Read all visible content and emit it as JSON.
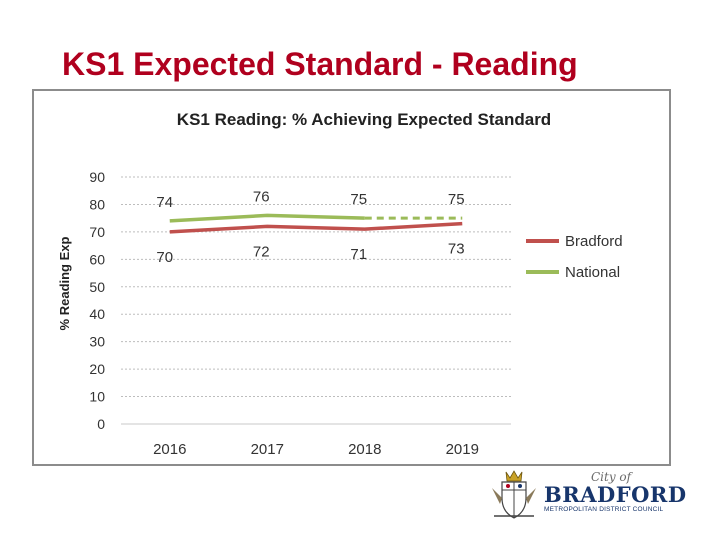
{
  "slide": {
    "title": "KS1 Expected Standard - Reading"
  },
  "chart_data": {
    "type": "line",
    "title": "KS1 Reading: % Achieving Expected Standard",
    "xlabel": "",
    "ylabel": "% Reading Exp",
    "categories": [
      "2016",
      "2017",
      "2018",
      "2019"
    ],
    "ylim": [
      0,
      90
    ],
    "yticks": [
      0,
      10,
      20,
      30,
      40,
      50,
      60,
      70,
      80,
      90
    ],
    "grid": true,
    "legend_position": "right",
    "series": [
      {
        "name": "Bradford",
        "values": [
          70,
          72,
          71,
          73
        ],
        "color": "#c0504d",
        "labels": [
          "70",
          "72",
          "71",
          "73"
        ]
      },
      {
        "name": "National",
        "values": [
          74,
          76,
          75,
          75
        ],
        "color": "#9bbb59",
        "labels": [
          "74",
          "76",
          "75",
          "75"
        ],
        "dashed_last_segment": true
      }
    ]
  },
  "logo": {
    "city_of": "City of",
    "name": "BRADFORD",
    "subtitle": "METROPOLITAN DISTRICT COUNCIL"
  }
}
